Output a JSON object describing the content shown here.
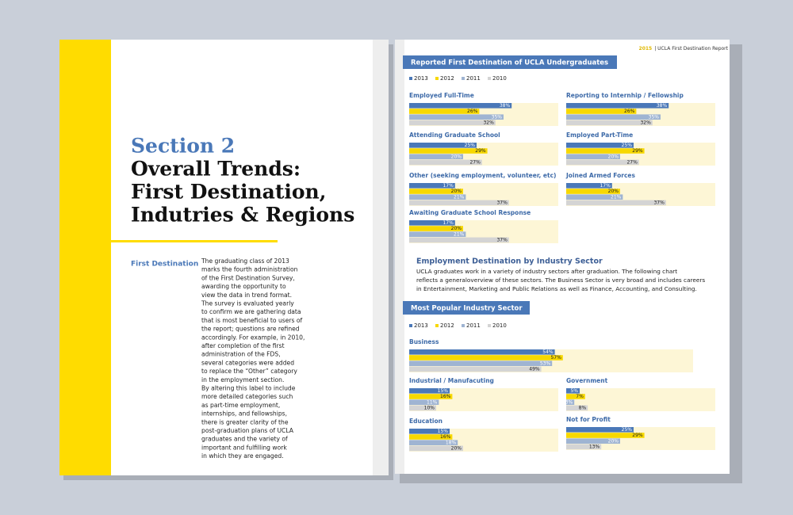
{
  "left": {
    "section": "Section 2",
    "title_lines": [
      "Overall Trends:",
      "First Destination,",
      "Indutries & Regions"
    ],
    "sidebar_label": "First Destination",
    "body_lines": [
      "The graduating class of 2013",
      "marks the fourth administration",
      "of the First Destination Survey,",
      "awarding the opportunity to",
      "view the data in trend format.",
      "The survey is evaluated yearly",
      "to confirm we are gathering data",
      "that is most beneficial to users of",
      "the report; questions are refined",
      "accordingly. For example, in 2010,",
      "after completion of the first",
      "administration of the FDS,",
      "several categories were added",
      "to replace the “Other” category",
      "in the employment section.",
      "By altering this label to include",
      "more detailed categories such",
      "as part-time employment,",
      "internships, and fellowships,",
      "there is greater clarity of the",
      "post-graduation plans of UCLA",
      "graduates and the variety of",
      "important and fulfilling work",
      "in which they are engaged."
    ]
  },
  "right": {
    "header_year": "2015",
    "header_title": "| UCLA First Destination Report",
    "industry_heading": "Employment Destination by Industry Sector",
    "industry_text_lines": [
      "UCLA graduates work in a variety of industry sectors after graduation. The following chart",
      "reflects a generaloverview of these sectors. The Business Sector is very broad and includes careers",
      "in Entertainment, Marketing and Public Relations as well as Finance, Accounting, and Consulting."
    ],
    "colors": [
      "#4a78b8",
      "#f7d800",
      "#9fb4d2",
      "#d4d4d4"
    ],
    "panels": [
      {
        "title": "Reported First Destination of  UCLA Undergraduates",
        "legend": [
          "2013",
          "2012",
          "2011",
          "2010"
        ],
        "charts": [
          {
            "title": "Employed Full-Time",
            "values": [
              38,
              26,
              35,
              32
            ],
            "value_labels": [
              "38%",
              "26%",
              "35%",
              "32%"
            ]
          },
          {
            "title": "Reporting to Internhip / Fellowship",
            "values": [
              38,
              26,
              35,
              32
            ],
            "value_labels": [
              "38%",
              "26%",
              "35%",
              "32%"
            ]
          },
          {
            "title": "Attending Graduate School",
            "values": [
              25,
              29,
              20,
              27
            ],
            "value_labels": [
              "25%",
              "29%",
              "20%",
              "27%"
            ]
          },
          {
            "title": "Employed Part-Time",
            "values": [
              25,
              29,
              20,
              27
            ],
            "value_labels": [
              "25%",
              "29%",
              "20%",
              "27%"
            ]
          },
          {
            "title": "Other (seeking employment, volunteer, etc)",
            "values": [
              17,
              20,
              21,
              37
            ],
            "value_labels": [
              "17%",
              "20%",
              "21%",
              "37%"
            ]
          },
          {
            "title": "Joined Armed Forces",
            "values": [
              17,
              20,
              21,
              37
            ],
            "value_labels": [
              "17%",
              "20%",
              "21%",
              "37%"
            ]
          },
          {
            "title": "Awaiting Graduate School Response",
            "values": [
              17,
              20,
              21,
              37
            ],
            "value_labels": [
              "17%",
              "20%",
              "21%",
              "37%"
            ]
          }
        ]
      },
      {
        "title": "Most Popular Industry Sector",
        "legend": [
          "2013",
          "2012",
          "2011",
          "2010"
        ],
        "charts": [
          {
            "title": "Business",
            "values": [
              54,
              57,
              53,
              49
            ],
            "value_labels": [
              "54%",
              "57%",
              "53%",
              "49%"
            ]
          },
          {
            "title": "Industrial / Manufacuting",
            "values": [
              15,
              16,
              11,
              10
            ],
            "value_labels": [
              "15%",
              "16%",
              "11%",
              "10%"
            ]
          },
          {
            "title": "Government",
            "values": [
              5,
              7,
              3,
              8
            ],
            "value_labels": [
              "5%",
              "7%",
              "3%",
              "8%"
            ]
          },
          {
            "title": "Education",
            "values": [
              15,
              16,
              18,
              20
            ],
            "value_labels": [
              "15%",
              "16%",
              "18%",
              "20%"
            ]
          },
          {
            "title": "Not for Profit",
            "values": [
              25,
              29,
              20,
              13
            ],
            "value_labels": [
              "25%",
              "29%",
              "20%",
              "13%"
            ]
          }
        ]
      }
    ]
  }
}
